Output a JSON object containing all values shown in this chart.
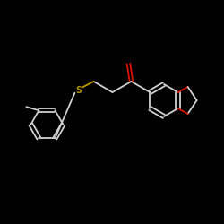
{
  "background_color": "#000000",
  "bond_color": "#d0d0d0",
  "oxygen_color": "#dd1100",
  "sulfur_color": "#bb9900",
  "figsize": [
    2.5,
    2.5
  ],
  "dpi": 100,
  "lw": 1.3
}
